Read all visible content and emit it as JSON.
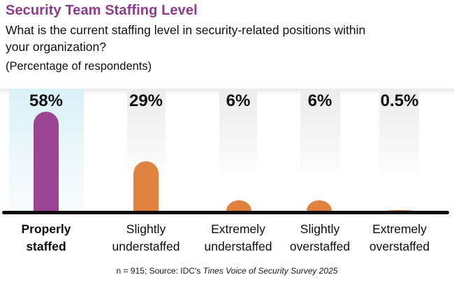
{
  "header": {
    "title": "Security Team Staffing Level",
    "subtitle_line1": "What is the current staffing level in security-related positions within",
    "subtitle_line2": "your organization?",
    "note": "(Percentage of respondents)"
  },
  "chart_data": {
    "type": "bar",
    "title": "Security Team Staffing Level",
    "subtitle": "What is the current staffing level in security-related positions within your organization?",
    "unit_note": "(Percentage of respondents)",
    "categories": [
      "Properly staffed",
      "Slightly understaffed",
      "Extremely understaffed",
      "Slightly overstaffed",
      "Extremely overstaffed"
    ],
    "values": [
      58,
      29,
      6,
      6,
      0.5
    ],
    "value_labels": [
      "58%",
      "29%",
      "6%",
      "6%",
      "0.5%"
    ],
    "xlabel": "",
    "ylabel": "",
    "ylim": [
      0,
      60
    ],
    "grid": false,
    "legend": false,
    "highlight_category": "Properly staffed",
    "bar_colors": [
      "#9a4492",
      "#e18340",
      "#e18340",
      "#e18340",
      "#e18340"
    ],
    "column_backgrounds": [
      "#d9f1f8",
      "#ececec",
      "#ececec",
      "#ececec",
      "#ececec"
    ]
  },
  "columns": [
    {
      "pct": "58%",
      "line1": "Properly",
      "line2": "staffed"
    },
    {
      "pct": "29%",
      "line1": "Slightly",
      "line2": "understaffed"
    },
    {
      "pct": "6%",
      "line1": "Extremely",
      "line2": "understaffed"
    },
    {
      "pct": "6%",
      "line1": "Slightly",
      "line2": "overstaffed"
    },
    {
      "pct": "0.5%",
      "line1": "Extremely",
      "line2": "overstaffed"
    }
  ],
  "footer": {
    "plain": "n = 915; Source: IDC's ",
    "italic": "Tines Voice of Security Survey 2025"
  },
  "colors": {
    "title": "#8e3b8e",
    "bar_purple": "#9a4492",
    "bar_orange": "#e18340",
    "highlight_column_bg": "#d9f1f8",
    "column_bg": "#ececec",
    "baseline": "#0b0b0b",
    "text": "#101010"
  }
}
